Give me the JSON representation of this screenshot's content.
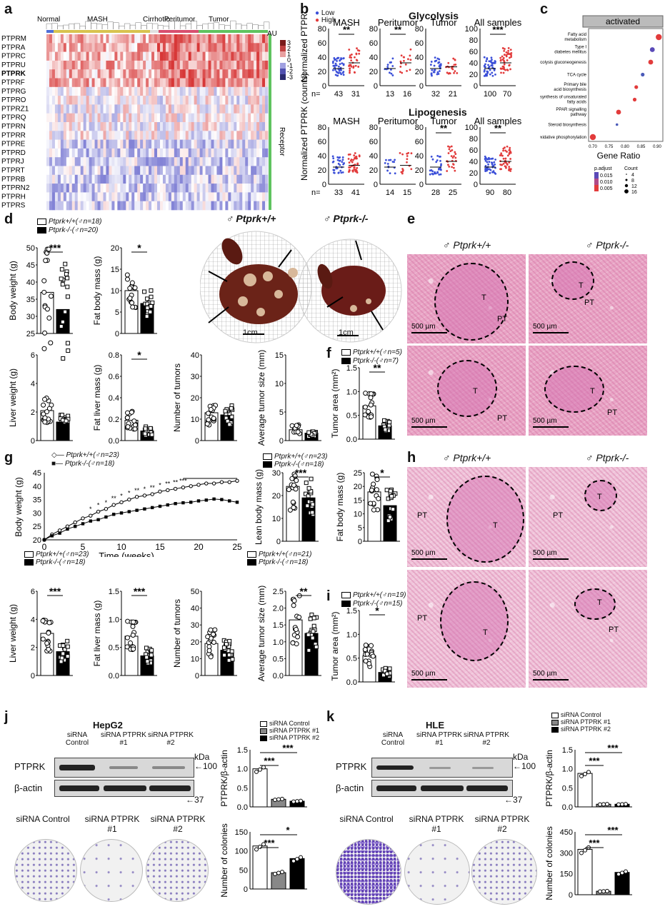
{
  "panels": {
    "a": "a",
    "b": "b",
    "c": "c",
    "d": "d",
    "e": "e",
    "f": "f",
    "g": "g",
    "h": "h",
    "i": "i",
    "j": "j",
    "k": "k"
  },
  "heatmap": {
    "groups": [
      "Normal",
      "MASH",
      "Cirrhotic",
      "Peritumor",
      "Tumor"
    ],
    "genes": [
      "PTPRM",
      "PTPRA",
      "PTPRC",
      "PTPRU",
      "PTPRK",
      "PTPRF",
      "PTPRG",
      "PTPRO",
      "PTPRZ1",
      "PTPRQ",
      "PTPRN",
      "PTPRR",
      "PTPRE",
      "PTPRD",
      "PTPRJ",
      "PTPRT",
      "PTPRB",
      "PTPRN2",
      "PTPRH",
      "PTPRS"
    ],
    "colorbar_title": "AU",
    "colorbar_ticks": [
      "3",
      "2",
      "1",
      "0",
      "-1",
      "-2",
      "-3"
    ],
    "side_label": "Receptor"
  },
  "panel_b": {
    "legend": [
      "Low",
      "High"
    ],
    "colors": {
      "low": "#3b4fd8",
      "high": "#e23b3b"
    },
    "ylabel": "Normalized PTPRK (counts)",
    "rows": [
      {
        "title": "Glycolysis",
        "plots": [
          {
            "name": "MASH",
            "n": [
              "43",
              "31"
            ],
            "sig": "**",
            "ticks": [
              "80",
              "60",
              "40",
              "20",
              "0"
            ],
            "max": 80
          },
          {
            "name": "Peritumor",
            "n": [
              "13",
              "16"
            ],
            "sig": "**",
            "ticks": [
              "80",
              "60",
              "40",
              "20",
              "0"
            ],
            "max": 80
          },
          {
            "name": "Tumor",
            "n": [
              "32",
              "21"
            ],
            "sig": "",
            "ticks": [
              "80",
              "60",
              "40",
              "20",
              "0"
            ],
            "max": 80
          },
          {
            "name": "All samples",
            "n": [
              "100",
              "70"
            ],
            "sig": "***",
            "ticks": [
              "100",
              "80",
              "60",
              "40",
              "20",
              "0"
            ],
            "max": 100
          }
        ]
      },
      {
        "title": "Lipogenesis",
        "plots": [
          {
            "name": "MASH",
            "n": [
              "33",
              "41"
            ],
            "sig": "",
            "ticks": [
              "80",
              "60",
              "40",
              "20",
              "0"
            ],
            "max": 80
          },
          {
            "name": "Peritumor",
            "n": [
              "14",
              "15"
            ],
            "sig": "",
            "ticks": [
              "80",
              "60",
              "40",
              "20",
              "0"
            ],
            "max": 80
          },
          {
            "name": "Tumor",
            "n": [
              "28",
              "25"
            ],
            "sig": "**",
            "ticks": [
              "80",
              "60",
              "40",
              "20",
              "0"
            ],
            "max": 80
          },
          {
            "name": "All samples",
            "n": [
              "90",
              "80"
            ],
            "sig": "**",
            "ticks": [
              "100",
              "80",
              "60",
              "40",
              "20",
              "0"
            ],
            "max": 100
          }
        ]
      }
    ]
  },
  "panel_c": {
    "header": "activated",
    "terms": [
      "Fatty acid metabolism",
      "Type I diabetes mellitus",
      "Glycolysis gluconeogenesis",
      "TCA cycle",
      "Primary bile acid biosynthesis",
      "Biosynthesis of unsaturated fatty acids",
      "PPAR signalling pathway",
      "Steroid biosynthesis",
      "Oxidative phosphorylation"
    ],
    "gene_ratio": [
      0.905,
      0.885,
      0.88,
      0.855,
      0.835,
      0.83,
      0.78,
      0.775,
      0.7
    ],
    "color": [
      "#e23b3b",
      "#5a4ab8",
      "#e23b3b",
      "#4a5ab8",
      "#e23b3b",
      "#e23b3b",
      "#e23b3b",
      "#4a5ab8",
      "#e23b3b"
    ],
    "count": [
      16,
      12,
      12,
      8,
      8,
      8,
      12,
      4,
      16
    ],
    "xticks": [
      "0.70",
      "0.75",
      "0.80",
      "0.85",
      "0.90"
    ],
    "xlabel": "Gene Ratio",
    "padj_title": "p.adjust",
    "padj_ticks": [
      "0.015",
      "0.010",
      "0.005"
    ],
    "count_title": "Count",
    "count_ticks": [
      "4",
      "8",
      "12",
      "16"
    ]
  },
  "panel_d": {
    "legend_wt": "Ptprk+/+(♂n=18)",
    "legend_ko": "Ptprk-/-(♂n=20)",
    "photo_wt": "♂ Ptprk+/+",
    "photo_ko": "♂ Ptprk-/-",
    "scale": "1cm",
    "bars": [
      {
        "ylabel": "Body weight (g)",
        "ticks": [
          "50",
          "45",
          "40",
          "35",
          "30",
          "25"
        ],
        "min": 25,
        "max": 50,
        "wt": 37,
        "ko": 32,
        "sig": "***"
      },
      {
        "ylabel": "Fat body mass (g)",
        "ticks": [
          "20",
          "15",
          "10",
          "5",
          "0"
        ],
        "min": 0,
        "max": 20,
        "wt": 10,
        "ko": 7,
        "sig": "*"
      },
      {
        "ylabel": "Liver weight (g)",
        "ticks": [
          "6",
          "4",
          "2",
          "0"
        ],
        "min": 0,
        "max": 6,
        "wt": 2.1,
        "ko": 1.3,
        "sig": ""
      },
      {
        "ylabel": "Fat liver mass (g)",
        "ticks": [
          "0.8",
          "0.6",
          "0.4",
          "0.2",
          "0.0"
        ],
        "min": 0,
        "max": 0.8,
        "wt": 0.19,
        "ko": 0.09,
        "sig": "*"
      },
      {
        "ylabel": "Number of tumors",
        "ticks": [
          "40",
          "30",
          "20",
          "10",
          "0"
        ],
        "min": 0,
        "max": 40,
        "wt": 13,
        "ko": 12,
        "sig": ""
      },
      {
        "ylabel": "Average tumor size (mm)",
        "ticks": [
          "15",
          "10",
          "5",
          "0"
        ],
        "min": 0,
        "max": 15,
        "wt": 1.9,
        "ko": 1.3,
        "sig": ""
      }
    ]
  },
  "panel_e": {
    "wt": "♂ Ptprk+/+",
    "ko": "♂ Ptprk-/-",
    "scale": "500 µm",
    "t": "T",
    "pt": "PT"
  },
  "panel_f": {
    "legend_wt": "Ptprk+/+(♂n=5)",
    "legend_ko": "Ptprk-/-(♂n=7)",
    "ylabel": "Tumor area (mm²)",
    "ticks": [
      "1.5",
      "1.0",
      "0.5",
      "0.0"
    ],
    "max": 1.5,
    "wt": 0.7,
    "ko": 0.28,
    "sig": "**"
  },
  "panel_g": {
    "line_legend_wt": "Ptprk+/+(♂n=23)",
    "line_legend_ko": "Ptprk-/-(♂n=18)",
    "xlabel": "Time (weeks)",
    "ylabel": "Body weight (g)",
    "xticks": [
      "0",
      "5",
      "10",
      "15",
      "20",
      "25"
    ],
    "yticks": [
      "45",
      "40",
      "35",
      "30",
      "25",
      "20"
    ],
    "weeks": [
      0,
      1,
      2,
      3,
      4,
      5,
      6,
      7,
      8,
      9,
      10,
      11,
      12,
      13,
      14,
      15,
      16,
      17,
      18,
      19,
      20,
      21,
      22,
      23,
      24,
      25
    ],
    "wt": [
      20,
      22,
      23.5,
      25,
      26.5,
      28,
      29,
      30.5,
      31.5,
      33,
      34,
      35,
      36,
      36.5,
      37,
      38,
      38.5,
      39,
      39.5,
      40,
      40.5,
      41,
      41,
      41.5,
      41.5,
      42
    ],
    "ko": [
      20,
      21.5,
      22.5,
      24,
      25,
      26,
      27,
      27.5,
      28.5,
      29.5,
      30,
      30.5,
      31,
      31.5,
      32,
      32.5,
      33,
      33.5,
      33.8,
      34,
      34.5,
      34.8,
      35.2,
      35,
      34.5,
      34
    ],
    "sig_stars": [
      "*",
      "*",
      "*",
      "**",
      "*",
      "*",
      "**",
      "*",
      "**",
      "*",
      "**",
      "**",
      "***"
    ],
    "bar_legend_wt": "Ptprk+/+(♂n=23)",
    "bar_legend_ko": "Ptprk-/-(♂n=18)",
    "bar_legend2_wt": "Ptprk+/+(♂n=21)",
    "bar_legend2_ko": "Ptprk-/-(♂n=18)",
    "bars": [
      {
        "ylabel": "Lean body mass (g)",
        "ticks": [
          "30",
          "20",
          "10",
          "0"
        ],
        "min": 0,
        "max": 30,
        "wt": 24,
        "ko": 19,
        "sig": "***"
      },
      {
        "ylabel": "Fat body mass (g)",
        "ticks": [
          "25",
          "20",
          "15",
          "10",
          "5",
          "0"
        ],
        "min": 0,
        "max": 25,
        "wt": 18,
        "ko": 13,
        "sig": "*"
      },
      {
        "ylabel": "Liver weight (g)",
        "ticks": [
          "6",
          "4",
          "2",
          "0"
        ],
        "min": 0,
        "max": 6,
        "wt": 3,
        "ko": 1.7,
        "sig": "***"
      },
      {
        "ylabel": "Fat liver mass (g)",
        "ticks": [
          "1.5",
          "1.0",
          "0.5",
          "0.0"
        ],
        "min": 0,
        "max": 1.5,
        "wt": 0.7,
        "ko": 0.35,
        "sig": "***"
      },
      {
        "ylabel": "Number of tumors",
        "ticks": [
          "50",
          "40",
          "30",
          "20",
          "10",
          "0"
        ],
        "min": 0,
        "max": 50,
        "wt": 19,
        "ko": 15,
        "sig": ""
      },
      {
        "ylabel": "Average tumor size (mm)",
        "ticks": [
          "2.5",
          "2.0",
          "1.5",
          "1.0",
          "0.5",
          "0.0"
        ],
        "min": 0,
        "max": 2.5,
        "wt": 1.65,
        "ko": 1.25,
        "sig": "**"
      }
    ]
  },
  "panel_h": {
    "wt": "♂ Ptprk+/+",
    "ko": "♂ Ptprk-/-",
    "scale": "500 µm",
    "t": "T",
    "pt": "PT"
  },
  "panel_i": {
    "legend_wt": "Ptprk+/+(♂n=19)",
    "legend_ko": "Ptprk-/-(♂n=15)",
    "ylabel": "Tumor area (mm²)",
    "ticks": [
      "1.5",
      "1.0",
      "0.5",
      "0.0"
    ],
    "max": 1.5,
    "wt": 0.55,
    "ko": 0.2,
    "sig": "*"
  },
  "panel_j": {
    "cell": "HepG2",
    "lanes": [
      "siRNA Control",
      "siRNA PTPRK #1",
      "siRNA PTPRK #2"
    ],
    "kda": "kDa",
    "prot1": "PTPRK",
    "mw1": "←100",
    "prot2": "β-actin",
    "mw2": "←37",
    "legend": [
      "siRNA Control",
      "siRNA PTPRK #1",
      "siRNA PTPRK #2"
    ],
    "ratio": {
      "ylabel": "PTPRK/β-actin",
      "ticks": [
        "1.5",
        "1.0",
        "0.5",
        "0.0"
      ],
      "max": 1.5,
      "values": [
        1.0,
        0.2,
        0.15
      ],
      "sig": [
        "***",
        "***"
      ]
    },
    "colonies": {
      "ylabel": "Number of colonies",
      "ticks": [
        "150",
        "100",
        "50",
        "0"
      ],
      "max": 150,
      "values": [
        113,
        43,
        80
      ],
      "sig": [
        "***",
        "*"
      ]
    },
    "dish_labels": [
      "siRNA Control",
      "siRNA PTPRK #1",
      "siRNA PTPRK #2"
    ]
  },
  "panel_k": {
    "cell": "HLE",
    "lanes": [
      "siRNA Control",
      "siRNA PTPRK #1",
      "siRNA PTPRK #2"
    ],
    "kda": "kDa",
    "prot1": "PTPRK",
    "mw1": "←100",
    "prot2": "β-actin",
    "mw2": "←37",
    "legend": [
      "siRNA Control",
      "siRNA PTPRK #1",
      "siRNA PTPRK #2"
    ],
    "ratio": {
      "ylabel": "PTPRK/β-actin",
      "ticks": [
        "1.5",
        "1.0",
        "0.5",
        "0.0"
      ],
      "max": 1.5,
      "values": [
        0.88,
        0.07,
        0.07
      ],
      "sig": [
        "***",
        "***"
      ]
    },
    "colonies": {
      "ylabel": "Number of colonies",
      "ticks": [
        "450",
        "300",
        "150",
        "0"
      ],
      "max": 450,
      "values": [
        325,
        25,
        160
      ],
      "sig": [
        "***",
        "***"
      ]
    },
    "dish_labels": [
      "siRNA Control",
      "siRNA PTPRK #1",
      "siRNA PTPRK #2"
    ]
  }
}
